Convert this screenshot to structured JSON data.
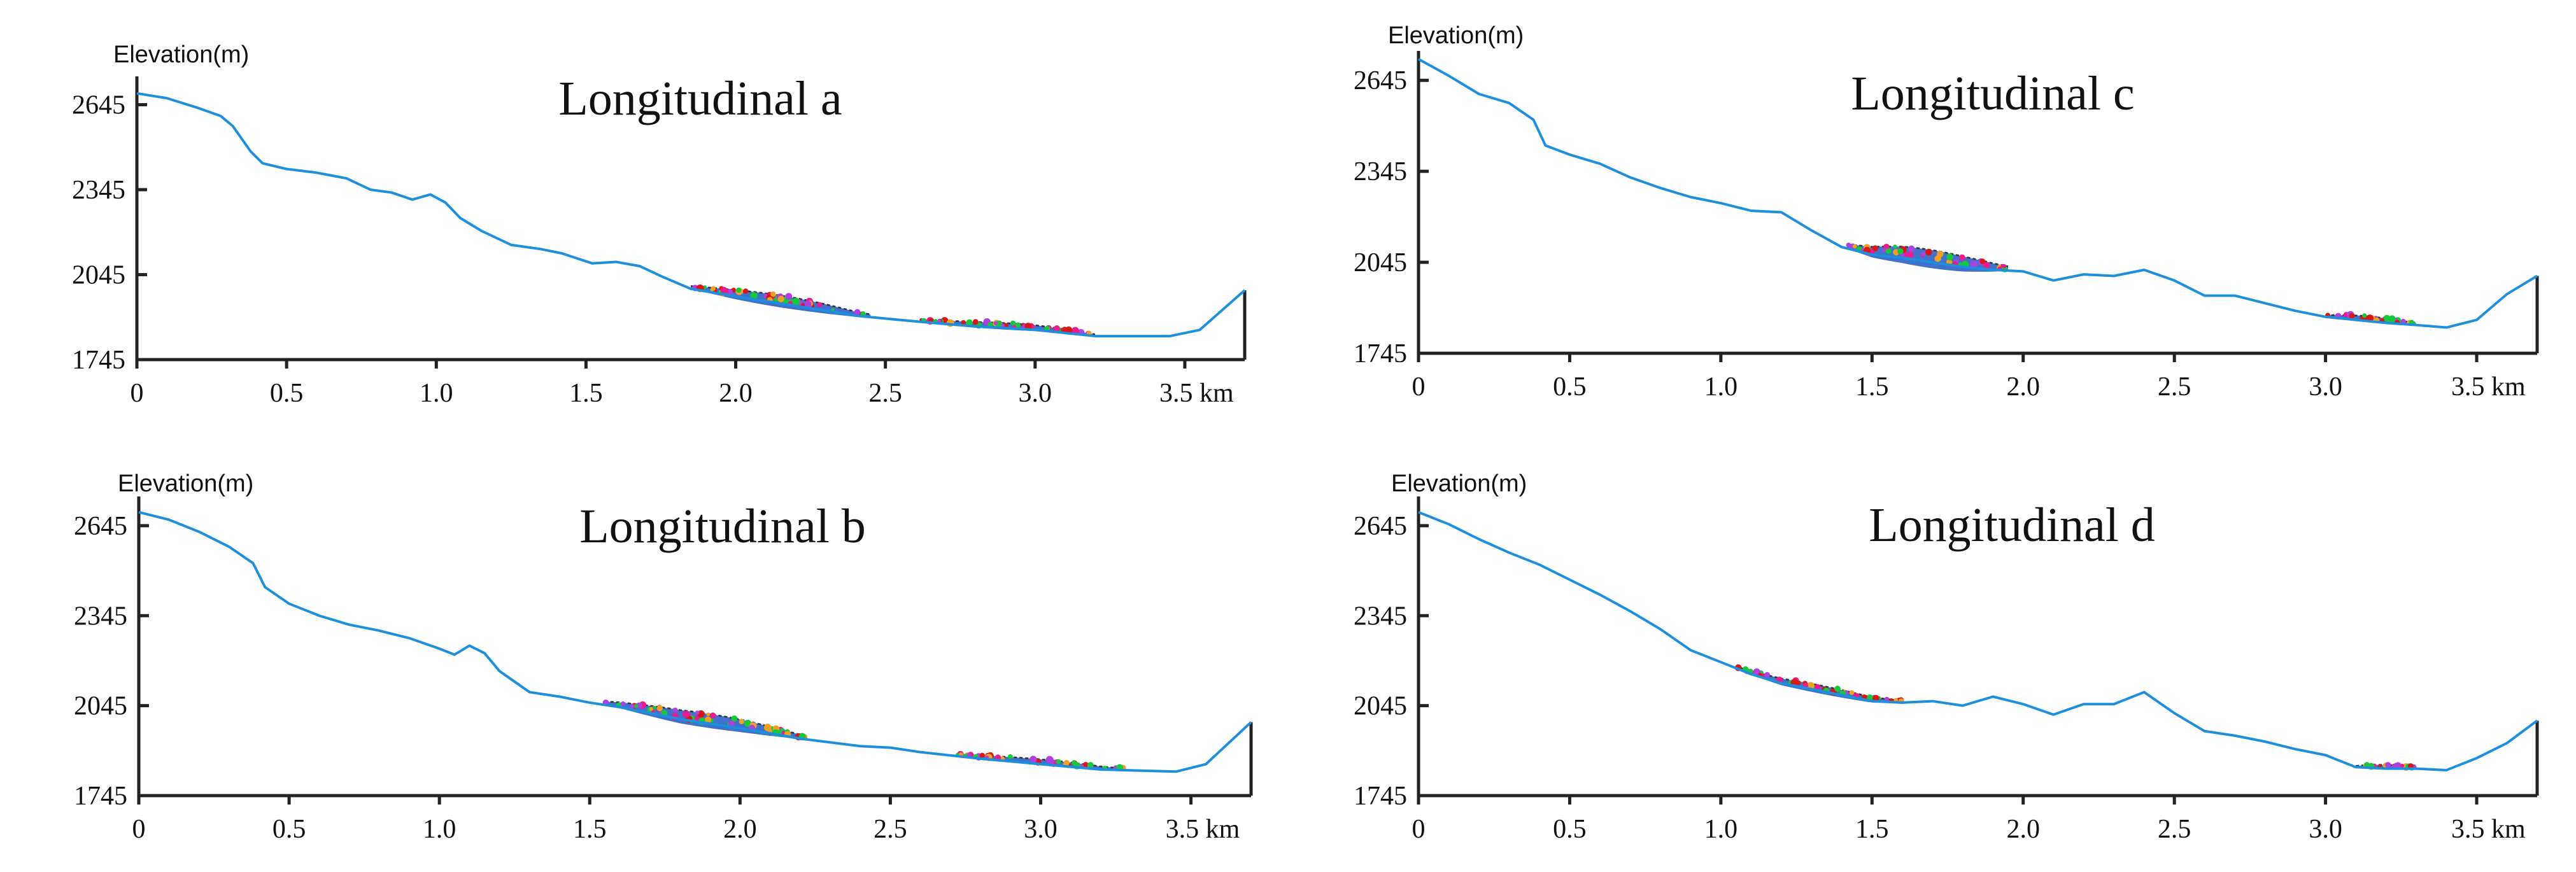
{
  "colors": {
    "profile": "#1e8fdc",
    "deposit_base": "#2a62c8",
    "deposit_markers": [
      "#18c83c",
      "#e81c8c",
      "#d81818",
      "#b040e0",
      "#f0a020"
    ]
  },
  "chart_data": [
    {
      "type": "line",
      "title": "Longitudinal a",
      "ylabel": "Elevation(m)",
      "x_unit": "km",
      "xlim": [
        0,
        3.7
      ],
      "ylim": [
        1745,
        2700
      ],
      "yticks": [
        1745,
        2045,
        2345,
        2645
      ],
      "xticks": [
        0,
        0.5,
        1.0,
        1.5,
        2.0,
        2.5,
        3.0,
        3.5
      ],
      "xtick_labels": [
        "0",
        "0.5",
        "1.0",
        "1.5",
        "2.0",
        "2.5",
        "3.0",
        "3.5 km"
      ],
      "series": [
        {
          "name": "terrain profile",
          "x": [
            0,
            0.1,
            0.2,
            0.28,
            0.32,
            0.38,
            0.42,
            0.5,
            0.6,
            0.7,
            0.78,
            0.85,
            0.92,
            0.98,
            1.03,
            1.08,
            1.15,
            1.25,
            1.35,
            1.42,
            1.52,
            1.6,
            1.68,
            1.75,
            1.85,
            2.0,
            2.2,
            2.4,
            2.6,
            2.8,
            3.0,
            3.2,
            3.45,
            3.55,
            3.7
          ],
          "y": [
            2685,
            2668,
            2635,
            2605,
            2570,
            2480,
            2438,
            2418,
            2405,
            2385,
            2345,
            2335,
            2310,
            2328,
            2300,
            2245,
            2200,
            2150,
            2135,
            2120,
            2085,
            2090,
            2075,
            2040,
            1995,
            1968,
            1935,
            1900,
            1880,
            1862,
            1850,
            1828,
            1828,
            1850,
            1990
          ]
        }
      ],
      "deposits": [
        {
          "x_start": 1.85,
          "x_end": 2.45,
          "base_offset": 28,
          "thickness": 28
        },
        {
          "x_start": 2.62,
          "x_end": 3.2,
          "base_offset": 10,
          "thickness": 18
        }
      ]
    },
    {
      "type": "line",
      "title": "Longitudinal c",
      "ylabel": "Elevation(m)",
      "x_unit": "km",
      "xlim": [
        0,
        3.7
      ],
      "ylim": [
        1745,
        2700
      ],
      "yticks": [
        1745,
        2045,
        2345,
        2645
      ],
      "xticks": [
        0,
        0.5,
        1.0,
        1.5,
        2.0,
        2.5,
        3.0,
        3.5
      ],
      "xtick_labels": [
        "0",
        "0.5",
        "1.0",
        "1.5",
        "2.0",
        "2.5",
        "3.0",
        "3.5 km"
      ],
      "series": [
        {
          "name": "terrain profile",
          "x": [
            0,
            0.1,
            0.2,
            0.3,
            0.38,
            0.42,
            0.5,
            0.6,
            0.7,
            0.8,
            0.9,
            1.0,
            1.1,
            1.2,
            1.3,
            1.4,
            1.5,
            1.6,
            1.7,
            1.8,
            1.9,
            2.0,
            2.1,
            2.2,
            2.3,
            2.4,
            2.5,
            2.6,
            2.7,
            2.8,
            2.9,
            3.0,
            3.1,
            3.2,
            3.3,
            3.4,
            3.5,
            3.6,
            3.7
          ],
          "y": [
            2715,
            2660,
            2600,
            2570,
            2515,
            2430,
            2400,
            2370,
            2325,
            2290,
            2260,
            2240,
            2215,
            2210,
            2150,
            2095,
            2070,
            2060,
            2045,
            2030,
            2020,
            2015,
            1985,
            2005,
            2000,
            2020,
            1985,
            1935,
            1935,
            1910,
            1885,
            1865,
            1855,
            1845,
            1838,
            1830,
            1855,
            1940,
            2000
          ]
        }
      ],
      "deposits": [
        {
          "x_start": 1.42,
          "x_end": 1.95,
          "base_offset": 40,
          "thickness": 40
        },
        {
          "x_start": 3.0,
          "x_end": 3.3,
          "base_offset": 8,
          "thickness": 16
        }
      ]
    },
    {
      "type": "line",
      "title": "Longitudinal b",
      "ylabel": "Elevation(m)",
      "x_unit": "km",
      "xlim": [
        0,
        3.7
      ],
      "ylim": [
        1745,
        2700
      ],
      "yticks": [
        1745,
        2045,
        2345,
        2645
      ],
      "xticks": [
        0,
        0.5,
        1.0,
        1.5,
        2.0,
        2.5,
        3.0,
        3.5
      ],
      "xtick_labels": [
        "0",
        "0.5",
        "1.0",
        "1.5",
        "2.0",
        "2.5",
        "3.0",
        "3.5 km"
      ],
      "series": [
        {
          "name": "terrain profile",
          "x": [
            0,
            0.1,
            0.2,
            0.3,
            0.38,
            0.42,
            0.5,
            0.6,
            0.7,
            0.8,
            0.9,
            1.0,
            1.05,
            1.1,
            1.15,
            1.2,
            1.3,
            1.4,
            1.5,
            1.6,
            1.7,
            1.8,
            1.9,
            2.0,
            2.2,
            2.4,
            2.5,
            2.6,
            2.8,
            3.0,
            3.2,
            3.45,
            3.55,
            3.7
          ],
          "y": [
            2690,
            2665,
            2625,
            2575,
            2520,
            2440,
            2385,
            2345,
            2315,
            2295,
            2270,
            2235,
            2215,
            2245,
            2220,
            2160,
            2090,
            2075,
            2055,
            2040,
            2020,
            2000,
            1985,
            1970,
            1935,
            1910,
            1905,
            1890,
            1868,
            1850,
            1832,
            1825,
            1850,
            1990
          ]
        }
      ],
      "deposits": [
        {
          "x_start": 1.55,
          "x_end": 2.22,
          "base_offset": 30,
          "thickness": 32
        },
        {
          "x_start": 2.72,
          "x_end": 3.28,
          "base_offset": 8,
          "thickness": 16
        }
      ]
    },
    {
      "type": "line",
      "title": "Longitudinal d",
      "ylabel": "Elevation(m)",
      "x_unit": "km",
      "xlim": [
        0,
        3.7
      ],
      "ylim": [
        1745,
        2700
      ],
      "yticks": [
        1745,
        2045,
        2345,
        2645
      ],
      "xticks": [
        0,
        0.5,
        1.0,
        1.5,
        2.0,
        2.5,
        3.0,
        3.5
      ],
      "xtick_labels": [
        "0",
        "0.5",
        "1.0",
        "1.5",
        "2.0",
        "2.5",
        "3.0",
        "3.5 km"
      ],
      "series": [
        {
          "name": "terrain profile",
          "x": [
            0,
            0.1,
            0.2,
            0.3,
            0.4,
            0.5,
            0.6,
            0.7,
            0.8,
            0.9,
            1.0,
            1.1,
            1.2,
            1.3,
            1.4,
            1.5,
            1.6,
            1.7,
            1.8,
            1.9,
            2.0,
            2.1,
            2.2,
            2.3,
            2.4,
            2.5,
            2.6,
            2.7,
            2.8,
            2.9,
            3.0,
            3.1,
            3.2,
            3.3,
            3.4,
            3.5,
            3.6,
            3.7
          ],
          "y": [
            2690,
            2650,
            2600,
            2555,
            2515,
            2465,
            2415,
            2360,
            2300,
            2230,
            2190,
            2150,
            2120,
            2100,
            2080,
            2060,
            2055,
            2060,
            2045,
            2075,
            2050,
            2015,
            2050,
            2050,
            2090,
            2020,
            1960,
            1945,
            1925,
            1900,
            1880,
            1840,
            1835,
            1835,
            1830,
            1870,
            1920,
            1995
          ]
        }
      ],
      "deposits": [
        {
          "x_start": 1.05,
          "x_end": 1.6,
          "base_offset": 18,
          "thickness": 18
        },
        {
          "x_start": 3.1,
          "x_end": 3.3,
          "base_offset": 6,
          "thickness": 12
        }
      ]
    }
  ]
}
